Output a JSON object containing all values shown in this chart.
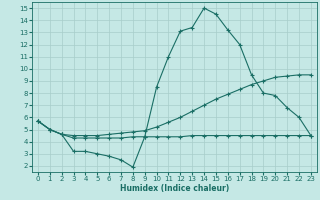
{
  "title": "",
  "xlabel": "Humidex (Indice chaleur)",
  "background_color": "#c5e8e5",
  "grid_color": "#a8ceca",
  "line_color": "#1a6e65",
  "xlim": [
    -0.5,
    23.5
  ],
  "ylim": [
    1.5,
    15.5
  ],
  "xticks": [
    0,
    1,
    2,
    3,
    4,
    5,
    6,
    7,
    8,
    9,
    10,
    11,
    12,
    13,
    14,
    15,
    16,
    17,
    18,
    19,
    20,
    21,
    22,
    23
  ],
  "yticks": [
    2,
    3,
    4,
    5,
    6,
    7,
    8,
    9,
    10,
    11,
    12,
    13,
    14,
    15
  ],
  "curve_main_x": [
    0,
    1,
    2,
    3,
    4,
    5,
    6,
    7,
    8,
    9,
    10,
    11,
    12,
    13,
    14,
    15,
    16,
    17,
    18,
    19,
    20,
    21,
    22,
    23
  ],
  "curve_main_y": [
    5.7,
    5.0,
    4.6,
    3.2,
    3.2,
    3.0,
    2.8,
    2.5,
    1.9,
    4.4,
    8.5,
    11.0,
    13.1,
    13.4,
    15.0,
    14.5,
    13.2,
    12.0,
    9.5,
    8.0,
    7.8,
    6.8,
    6.0,
    4.5
  ],
  "curve_upper_x": [
    0,
    1,
    2,
    3,
    4,
    5,
    6,
    7,
    8,
    9,
    10,
    11,
    12,
    13,
    14,
    15,
    16,
    17,
    18,
    19,
    20,
    21,
    22,
    23
  ],
  "curve_upper_y": [
    5.7,
    5.0,
    4.6,
    4.5,
    4.5,
    4.5,
    4.6,
    4.7,
    4.8,
    4.9,
    5.2,
    5.6,
    6.0,
    6.5,
    7.0,
    7.5,
    7.9,
    8.3,
    8.7,
    9.0,
    9.3,
    9.4,
    9.5,
    9.5
  ],
  "curve_lower_x": [
    0,
    1,
    2,
    3,
    4,
    5,
    6,
    7,
    8,
    9,
    10,
    11,
    12,
    13,
    14,
    15,
    16,
    17,
    18,
    19,
    20,
    21,
    22,
    23
  ],
  "curve_lower_y": [
    5.7,
    5.0,
    4.6,
    4.3,
    4.3,
    4.3,
    4.3,
    4.3,
    4.4,
    4.4,
    4.4,
    4.4,
    4.4,
    4.5,
    4.5,
    4.5,
    4.5,
    4.5,
    4.5,
    4.5,
    4.5,
    4.5,
    4.5,
    4.5
  ]
}
